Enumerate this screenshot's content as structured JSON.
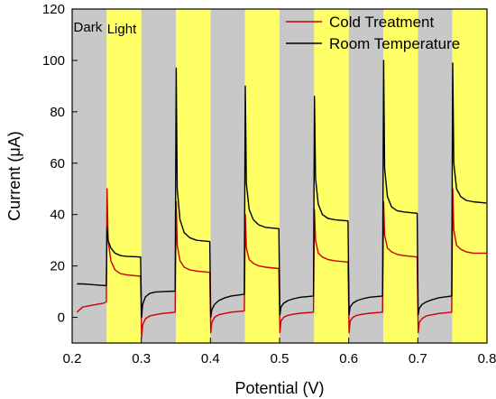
{
  "chart_data": {
    "type": "line",
    "xlabel": "Potential (V)",
    "ylabel": "Current (μA)",
    "xlim": [
      0.2,
      0.8
    ],
    "ylim": [
      -10,
      120
    ],
    "xticks": [
      0.2,
      0.3,
      0.4,
      0.5,
      0.6,
      0.7,
      0.8
    ],
    "yticks": [
      0,
      20,
      40,
      60,
      80,
      100,
      120
    ],
    "region_labels": {
      "dark": "Dark",
      "light": "Light"
    },
    "colors": {
      "dark_band": "#c8c8c8",
      "light_band": "#ffff66",
      "cold": "#cc0000",
      "room": "#000000"
    },
    "dark_bands": [
      [
        0.2,
        0.25
      ],
      [
        0.3,
        0.35
      ],
      [
        0.4,
        0.45
      ],
      [
        0.5,
        0.55
      ],
      [
        0.6,
        0.65
      ],
      [
        0.7,
        0.75
      ]
    ],
    "light_bands": [
      [
        0.25,
        0.3
      ],
      [
        0.35,
        0.4
      ],
      [
        0.45,
        0.5
      ],
      [
        0.55,
        0.6
      ],
      [
        0.65,
        0.7
      ],
      [
        0.75,
        0.8
      ]
    ],
    "legend_position": "top-right",
    "series": [
      {
        "name": "Cold Treatment",
        "x": [
          0.207,
          0.215,
          0.225,
          0.235,
          0.245,
          0.2495,
          0.2505,
          0.252,
          0.256,
          0.262,
          0.27,
          0.28,
          0.299,
          0.3005,
          0.302,
          0.306,
          0.312,
          0.32,
          0.33,
          0.349,
          0.3505,
          0.352,
          0.356,
          0.362,
          0.37,
          0.38,
          0.399,
          0.4005,
          0.402,
          0.406,
          0.412,
          0.42,
          0.43,
          0.449,
          0.4505,
          0.452,
          0.456,
          0.462,
          0.47,
          0.48,
          0.499,
          0.5005,
          0.502,
          0.506,
          0.512,
          0.52,
          0.53,
          0.549,
          0.5505,
          0.552,
          0.556,
          0.562,
          0.57,
          0.58,
          0.599,
          0.6005,
          0.602,
          0.606,
          0.612,
          0.62,
          0.63,
          0.649,
          0.6505,
          0.652,
          0.656,
          0.662,
          0.67,
          0.68,
          0.699,
          0.7005,
          0.702,
          0.706,
          0.712,
          0.72,
          0.73,
          0.749,
          0.7505,
          0.752,
          0.756,
          0.762,
          0.77,
          0.78,
          0.799
        ],
        "y": [
          2,
          4,
          4.5,
          5,
          5.5,
          6,
          50,
          30,
          22,
          18.5,
          17,
          16.5,
          16,
          -8,
          -3,
          -0.5,
          0.5,
          1,
          1.5,
          2,
          45,
          28,
          22,
          19.5,
          18.5,
          18,
          17.5,
          -6,
          -2,
          0,
          1,
          1.5,
          2,
          2.5,
          40,
          27,
          22.5,
          21,
          20,
          19.5,
          19,
          -6,
          -1.5,
          0,
          0.8,
          1.2,
          1.6,
          2,
          42,
          30,
          25,
          23.5,
          22.5,
          22,
          21.5,
          -6,
          -1.5,
          0,
          0.8,
          1.2,
          1.6,
          2,
          45,
          32,
          27,
          25.5,
          24.5,
          24,
          23.5,
          -6,
          -2,
          -0.5,
          0.5,
          1,
          1.5,
          2,
          50,
          34,
          28,
          26.5,
          25.5,
          25,
          25
        ]
      },
      {
        "name": "Room Temperature",
        "x": [
          0.207,
          0.215,
          0.225,
          0.235,
          0.245,
          0.2495,
          0.2505,
          0.252,
          0.256,
          0.262,
          0.27,
          0.28,
          0.299,
          0.3005,
          0.302,
          0.306,
          0.312,
          0.32,
          0.33,
          0.349,
          0.3505,
          0.352,
          0.356,
          0.362,
          0.37,
          0.38,
          0.399,
          0.4005,
          0.402,
          0.406,
          0.412,
          0.42,
          0.43,
          0.449,
          0.4505,
          0.452,
          0.456,
          0.462,
          0.47,
          0.48,
          0.499,
          0.5005,
          0.502,
          0.506,
          0.512,
          0.52,
          0.53,
          0.549,
          0.5505,
          0.552,
          0.556,
          0.562,
          0.57,
          0.58,
          0.599,
          0.6005,
          0.602,
          0.606,
          0.612,
          0.62,
          0.63,
          0.649,
          0.6505,
          0.652,
          0.656,
          0.662,
          0.67,
          0.68,
          0.699,
          0.7005,
          0.702,
          0.706,
          0.712,
          0.72,
          0.73,
          0.749,
          0.7505,
          0.752,
          0.756,
          0.762,
          0.77,
          0.78,
          0.799
        ],
        "y": [
          13,
          13,
          12.8,
          12.6,
          12.4,
          12.3,
          35,
          30,
          27,
          25,
          24,
          23.7,
          23.5,
          0,
          5,
          8,
          9.3,
          9.8,
          10,
          10.2,
          97,
          50,
          38,
          33,
          31,
          30,
          29.5,
          0,
          3,
          5,
          6.5,
          7.5,
          8.3,
          9,
          90,
          52,
          42,
          38,
          36,
          35,
          34.5,
          1,
          4,
          5.5,
          6.5,
          7.2,
          7.8,
          8.3,
          86,
          54,
          44,
          40,
          38.5,
          38,
          37.5,
          1,
          4,
          5.5,
          6.5,
          7.2,
          7.8,
          8.3,
          100,
          58,
          47,
          43,
          41.5,
          41,
          40.5,
          1,
          3.5,
          5,
          6,
          6.8,
          7.6,
          8.3,
          99,
          60,
          50,
          47,
          45.5,
          45,
          44.5
        ]
      }
    ]
  }
}
